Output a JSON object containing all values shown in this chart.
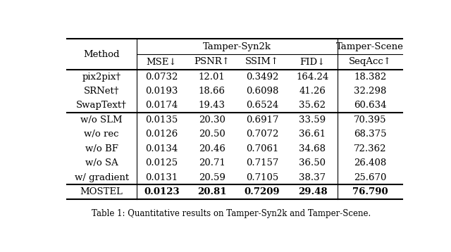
{
  "col_headers_row1_group1": "Tamper-Syn2k",
  "col_headers_row1_group2": "Tamper-Scene",
  "col_headers_row2": [
    "Method",
    "MSE↓",
    "PSNR↑",
    "SSIM↑",
    "FID↓",
    "SeqAcc↑"
  ],
  "rows": [
    [
      "pix2pix†",
      "0.0732",
      "12.01",
      "0.3492",
      "164.24",
      "18.382"
    ],
    [
      "SRNet†",
      "0.0193",
      "18.66",
      "0.6098",
      "41.26",
      "32.298"
    ],
    [
      "SwapText†",
      "0.0174",
      "19.43",
      "0.6524",
      "35.62",
      "60.634"
    ],
    [
      "w/o SLM",
      "0.0135",
      "20.30",
      "0.6917",
      "33.59",
      "70.395"
    ],
    [
      "w/o rec",
      "0.0126",
      "20.50",
      "0.7072",
      "36.61",
      "68.375"
    ],
    [
      "w/o BF",
      "0.0134",
      "20.46",
      "0.7061",
      "34.68",
      "72.362"
    ],
    [
      "w/o SA",
      "0.0125",
      "20.71",
      "0.7157",
      "36.50",
      "26.408"
    ],
    [
      "w/ gradient",
      "0.0131",
      "20.59",
      "0.7105",
      "38.37",
      "25.670"
    ],
    [
      "MOSTEL",
      "0.0123",
      "20.81",
      "0.7209",
      "29.48",
      "76.790"
    ]
  ],
  "bold_row_idx": 8,
  "bold_data_cols": [
    1,
    2,
    3,
    4,
    5
  ],
  "thick_separator_after_data_rows": [
    2,
    7
  ],
  "caption": "Table 1: Quantitative results on Tamper-Syn2k and Tamper-Scene.",
  "bg_color": "#ffffff",
  "text_color": "#000000",
  "font_size": 9.5,
  "caption_font_size": 8.5
}
